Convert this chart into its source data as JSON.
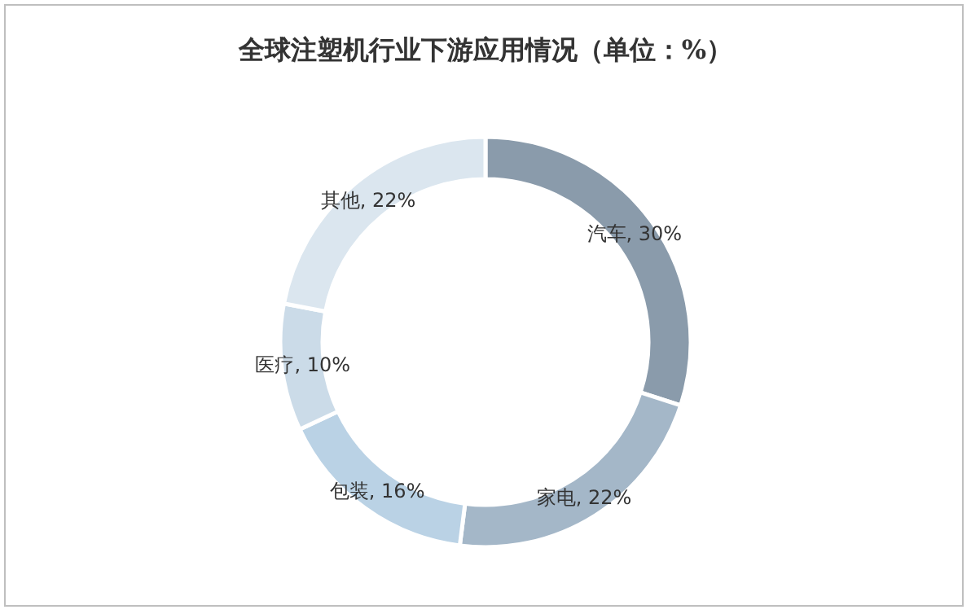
{
  "chart_data": {
    "type": "donut",
    "title": "全球注塑机行业下游应用情况（单位：%）",
    "categories": [
      "汽车",
      "家电",
      "包装",
      "医疗",
      "其他"
    ],
    "values": [
      30,
      22,
      16,
      10,
      22
    ],
    "value_labels": [
      ", 30%",
      ", 22%",
      ", 16%",
      ", 10%",
      ", 22%"
    ],
    "colors": [
      "#8a9bab",
      "#a4b7c8",
      "#bad2e5",
      "#cbdbe8",
      "#dbe6ef"
    ]
  }
}
